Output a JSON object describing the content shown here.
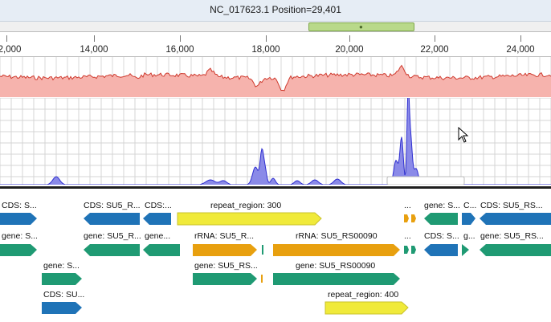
{
  "window": {
    "title": "NC_017623.1 Position=29,401"
  },
  "ruler": {
    "ticks": [
      "2,000",
      "14,000",
      "16,000",
      "18,000",
      "20,000",
      "22,000",
      "24,000"
    ]
  },
  "colors": {
    "gc_fill": "#f6b3ad",
    "gc_line": "#cf3a2e",
    "coverage": "#2f2fd0",
    "coverage_fill": "#8a8ae8",
    "cds": "#1f73b7",
    "gene": "#1f9a73",
    "rrna": "#e8a00f",
    "repeat": "#f0ea3a"
  },
  "features": {
    "row1": [
      {
        "label": "CDS: S...",
        "type": "cds"
      },
      {
        "label": "CDS: SU5_R...",
        "type": "cds"
      },
      {
        "label": "CDS:...",
        "type": "cds"
      },
      {
        "label": "repeat_region: 300",
        "type": "repeat"
      },
      {
        "label": "...",
        "type": "other"
      },
      {
        "label": "gene: S...",
        "type": "gene"
      },
      {
        "label": "C...",
        "type": "cds"
      },
      {
        "label": "CDS: SU5_RS...",
        "type": "cds"
      }
    ],
    "row2": [
      {
        "label": "gene: S...",
        "type": "gene"
      },
      {
        "label": "gene: SU5_R...",
        "type": "gene"
      },
      {
        "label": "gene...",
        "type": "gene"
      },
      {
        "label": "rRNA: SU5_R...",
        "type": "rrna"
      },
      {
        "label": "rRNA: SU5_RS00090",
        "type": "rrna"
      },
      {
        "label": "...",
        "type": "other"
      },
      {
        "label": "CDS: S...",
        "type": "cds"
      },
      {
        "label": "g...",
        "type": "gene"
      },
      {
        "label": "gene: SU5_RS...",
        "type": "gene"
      }
    ],
    "row3": [
      {
        "label": "gene: S...",
        "type": "gene"
      },
      {
        "label": "gene: SU5_RS...",
        "type": "gene"
      },
      {
        "label": "gene: SU5_RS00090",
        "type": "gene"
      }
    ],
    "row4": [
      {
        "label": "CDS: SU...",
        "type": "cds"
      },
      {
        "label": "repeat_region: 400",
        "type": "repeat"
      }
    ]
  }
}
